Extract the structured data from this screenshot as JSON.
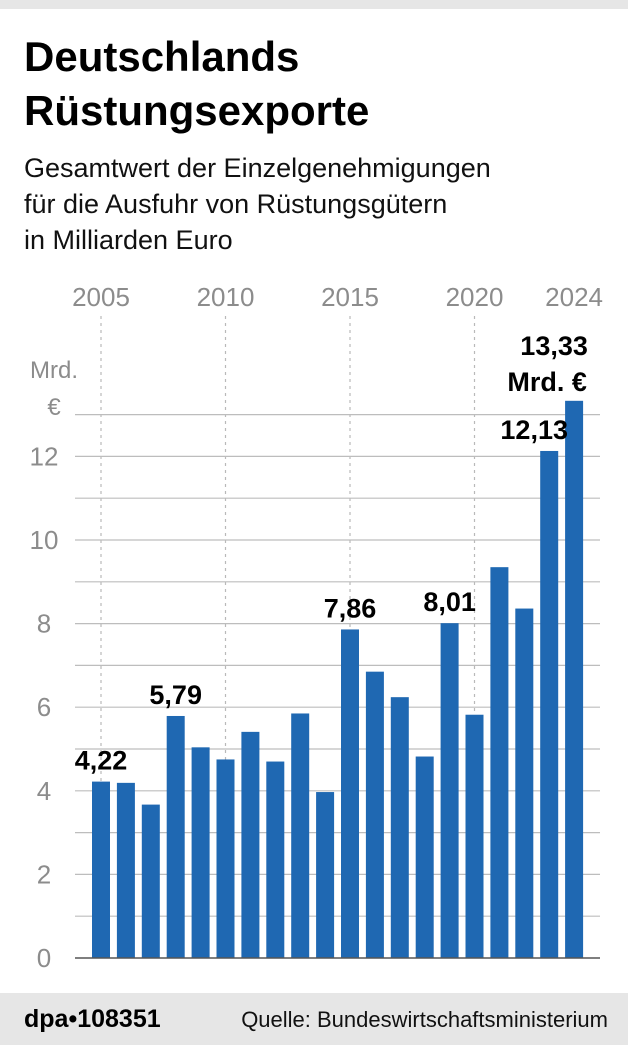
{
  "header": {
    "title_line1": "Deutschlands",
    "title_line2": "Rüstungsexporte",
    "subtitle_line1": "Gesamtwert der Einzelgenehmigungen",
    "subtitle_line2": "für die Ausfuhr von Rüstungsgütern",
    "subtitle_line3": "in Milliarden Euro"
  },
  "footer": {
    "id": "dpa•108351",
    "source": "Quelle: Bundeswirtschaftsministerium"
  },
  "chart_data": {
    "type": "bar",
    "title": "Deutschlands Rüstungsexporte",
    "subtitle": "Gesamtwert der Einzelgenehmigungen für die Ausfuhr von Rüstungsgütern in Milliarden Euro",
    "unit_line1": "Mrd.",
    "unit_line2": "€",
    "x": [
      2005,
      2006,
      2007,
      2008,
      2009,
      2010,
      2011,
      2012,
      2013,
      2014,
      2015,
      2016,
      2017,
      2018,
      2019,
      2020,
      2021,
      2022,
      2023,
      2024
    ],
    "values": [
      4.22,
      4.19,
      3.67,
      5.79,
      5.04,
      4.75,
      5.41,
      4.7,
      5.85,
      3.97,
      7.86,
      6.85,
      6.24,
      4.82,
      8.01,
      5.82,
      9.35,
      8.36,
      12.13,
      13.33
    ],
    "top_tick_labels": [
      "2005",
      "2010",
      "2015",
      "2020",
      "2024"
    ],
    "top_tick_years": [
      2005,
      2010,
      2015,
      2020,
      2024
    ],
    "y_ticks": [
      0,
      2,
      4,
      6,
      8,
      10,
      12
    ],
    "ylim": [
      0,
      13.8
    ],
    "grid": "horizontal dashed",
    "bar_color": "#1f68b2",
    "labels": [
      {
        "year": 2005,
        "text": "4,22"
      },
      {
        "year": 2008,
        "text": "5,79"
      },
      {
        "year": 2015,
        "text": "7,86"
      },
      {
        "year": 2019,
        "text": "8,01"
      },
      {
        "year": 2023,
        "text": "12,13"
      },
      {
        "year": 2024,
        "text": "13,33",
        "text2": "Mrd. €"
      }
    ]
  }
}
